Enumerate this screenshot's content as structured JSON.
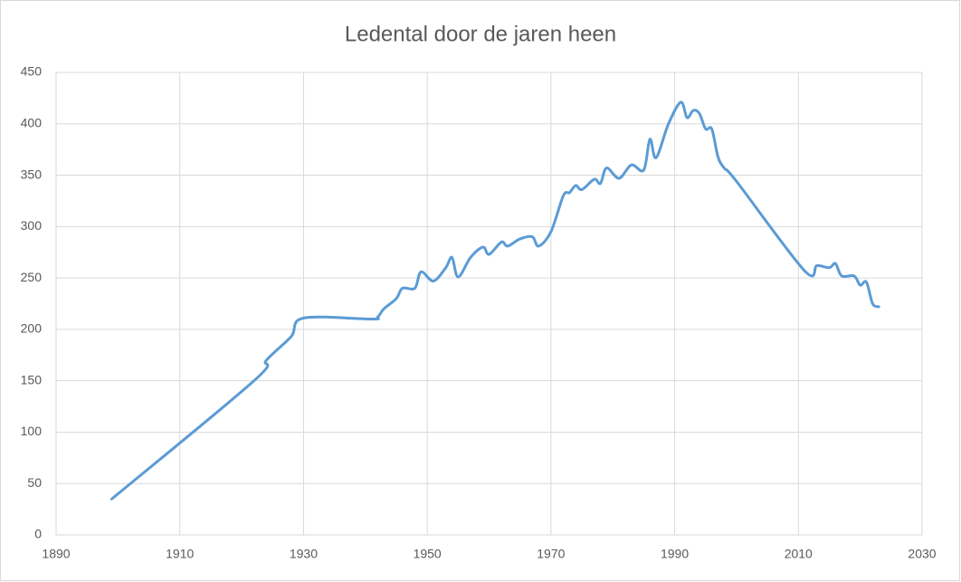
{
  "chart_data": {
    "type": "line",
    "title": "Ledental door de jaren heen",
    "x": [
      1899,
      1922,
      1924,
      1928,
      1930,
      1941,
      1942,
      1943,
      1945,
      1946,
      1948,
      1949,
      1951,
      1953,
      1954,
      1955,
      1957,
      1959,
      1960,
      1962,
      1963,
      1965,
      1967,
      1968,
      1970,
      1972,
      1973,
      1974,
      1975,
      1977,
      1978,
      1979,
      1981,
      1983,
      1985,
      1986,
      1987,
      1989,
      1991,
      1992,
      1993,
      1994,
      1995,
      1996,
      1997,
      1998,
      2000,
      2011,
      2013,
      2015,
      2016,
      2017,
      2019,
      2020,
      2021,
      2022,
      2023
    ],
    "values": [
      35,
      150,
      170,
      193,
      211,
      210,
      212,
      220,
      230,
      240,
      240,
      256,
      247,
      260,
      270,
      251,
      270,
      280,
      273,
      285,
      281,
      288,
      290,
      281,
      295,
      330,
      333,
      340,
      336,
      346,
      342,
      357,
      347,
      360,
      355,
      385,
      367,
      400,
      421,
      406,
      413,
      410,
      395,
      395,
      368,
      357,
      344,
      257,
      262,
      260,
      264,
      252,
      252,
      243,
      246,
      225,
      222
    ],
    "color": "#5b9bd5",
    "xlim": [
      1890,
      2030
    ],
    "xticks": [
      1890,
      1910,
      1930,
      1950,
      1970,
      1990,
      2010,
      2030
    ],
    "ylim": [
      0,
      450
    ],
    "yticks": [
      0,
      50,
      100,
      150,
      200,
      250,
      300,
      350,
      400,
      450
    ],
    "grid": true
  }
}
